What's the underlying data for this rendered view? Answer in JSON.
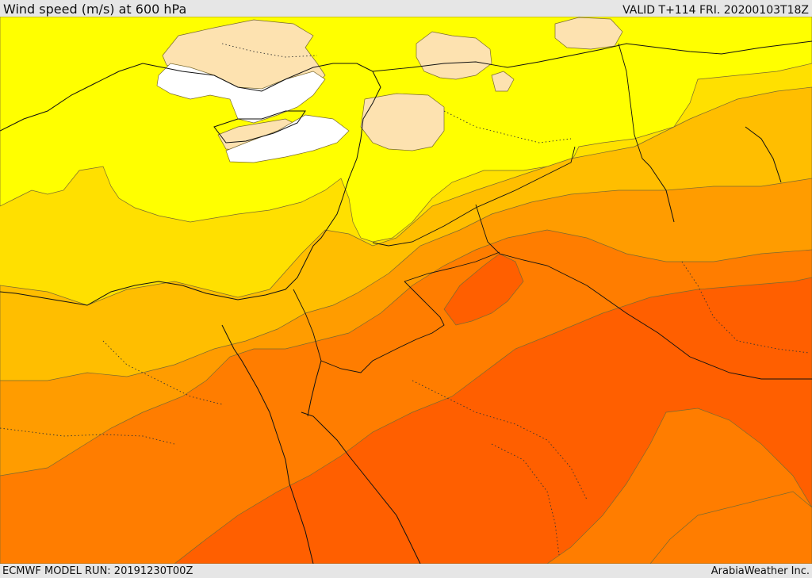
{
  "header": {
    "title": "Wind speed (m/s) at 600 hPa",
    "valid": "VALID T+114 FRI. 20200103T18Z"
  },
  "footer": {
    "model_run": "ECMWF MODEL RUN: 20191230T00Z",
    "credit": "ArabiaWeather Inc."
  },
  "map": {
    "field": "wind-speed",
    "level": "600 hPa",
    "colors": {
      "calm": "#ffffff",
      "very_light": "#fde2b0",
      "light": "#ffff00",
      "moderate": "#ffe000",
      "fresh": "#ffbe00",
      "strong": "#ff9c00",
      "very_strong": "#ff7d00",
      "extreme": "#ff5f00"
    }
  }
}
